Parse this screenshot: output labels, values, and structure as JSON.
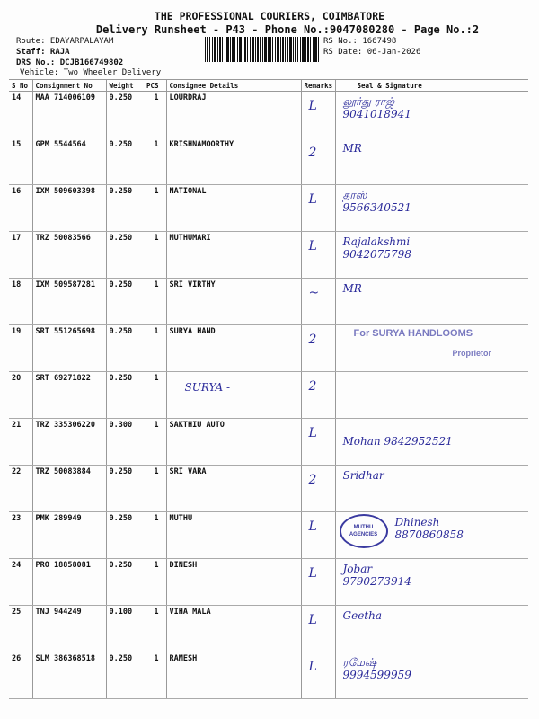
{
  "header": {
    "company": "THE PROFESSIONAL COURIERS, COIMBATORE",
    "subtitle": "Delivery Runsheet - P43 - Phone No.:9047080280 - Page No.:2",
    "route": "Route: EDAYARPALAYAM",
    "staff": "Staff: RAJA",
    "drs_no": "DRS No.: DCJB166749802",
    "vehicle": "Vehicle: Two Wheeler Delivery",
    "rs_no": "RS No.: 1667498",
    "rs_date": "RS Date: 06-Jan-2026"
  },
  "columns": [
    "S No",
    "Consignment No",
    "Weight",
    "PCS",
    "Consignee Details",
    "Remarks",
    "Seal & Signature"
  ],
  "rows": [
    {
      "sno": "14",
      "cn": "MAA 714006109",
      "weight": "0.250",
      "pcs": "1",
      "consignee": "LOURDRAJ",
      "remark": "L",
      "signature": "லூர்து ராஜ்\n9041018941"
    },
    {
      "sno": "15",
      "cn": "GPM 5544564",
      "weight": "0.250",
      "pcs": "1",
      "consignee": "KRISHNAMOORTHY",
      "remark": "2",
      "signature": "   MR"
    },
    {
      "sno": "16",
      "cn": "IXM 509603398",
      "weight": "0.250",
      "pcs": "1",
      "consignee": "NATIONAL",
      "remark": "L",
      "signature": "தாஸ்\n9566340521"
    },
    {
      "sno": "17",
      "cn": "TRZ 50083566",
      "weight": "0.250",
      "pcs": "1",
      "consignee": "MUTHUMARI",
      "remark": "L",
      "signature": "Rajalakshmi\n9042075798"
    },
    {
      "sno": "18",
      "cn": "IXM 509587281",
      "weight": "0.250",
      "pcs": "1",
      "consignee": "SRI VIRTHY",
      "remark": "~",
      "signature": "          MR"
    },
    {
      "sno": "19",
      "cn": "SRT 551265698",
      "weight": "0.250",
      "pcs": "1",
      "consignee": "SURYA HAND",
      "remark": "2",
      "signature": "",
      "stamp": "For SURYA HANDLOOMS",
      "stamp_role": "Proprietor"
    },
    {
      "sno": "20",
      "cn": "SRT 69271822",
      "weight": "0.250",
      "pcs": "1",
      "consignee": "",
      "consignee_handwritten": "SURYA -",
      "remark": "2",
      "signature": ""
    },
    {
      "sno": "21",
      "cn": "TRZ 335306220",
      "weight": "0.300",
      "pcs": "1",
      "consignee": "SAKTHIU AUTO",
      "remark": "L",
      "signature": "\nMohan  9842952521"
    },
    {
      "sno": "22",
      "cn": "TRZ 50083884",
      "weight": "0.250",
      "pcs": "1",
      "consignee": "SRI VARA",
      "remark": "2",
      "signature": "Sridhar"
    },
    {
      "sno": "23",
      "cn": "PMK 289949",
      "weight": "0.250",
      "pcs": "1",
      "consignee": "MUTHU",
      "remark": "L",
      "signature": "            Dhinesh\n            8870860858",
      "seal": "MUTHU AGENCIES"
    },
    {
      "sno": "24",
      "cn": "PRO 18858081",
      "weight": "0.250",
      "pcs": "1",
      "consignee": "DINESH",
      "remark": "L",
      "signature": "  Jobar\n  9790273914"
    },
    {
      "sno": "25",
      "cn": "TNJ 944249",
      "weight": "0.100",
      "pcs": "1",
      "consignee": "VIHA MALA",
      "remark": "L",
      "signature": "   Geetha"
    },
    {
      "sno": "26",
      "cn": "SLM 386368518",
      "weight": "0.250",
      "pcs": "1",
      "consignee": "RAMESH",
      "remark": "L",
      "signature": "ரமேஷ்\n9994599959"
    }
  ]
}
